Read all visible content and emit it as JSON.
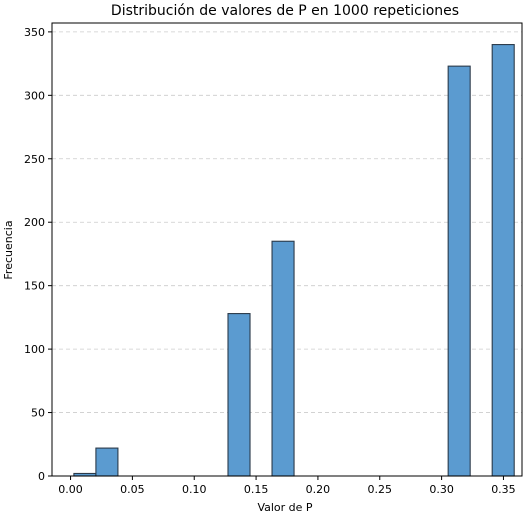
{
  "chart_data": {
    "type": "bar",
    "title": "Distribución de valores de P en 1000 repeticiones",
    "xlabel": "Valor de P",
    "ylabel": "Frecuencia",
    "xlim": [
      -0.015,
      0.365
    ],
    "ylim": [
      0,
      357
    ],
    "xticks": [
      0.0,
      0.05,
      0.1,
      0.15,
      0.2,
      0.25,
      0.3,
      0.35
    ],
    "xtick_labels": [
      "0.00",
      "0.05",
      "0.10",
      "0.15",
      "0.20",
      "0.25",
      "0.30",
      "0.35"
    ],
    "yticks": [
      0,
      50,
      100,
      150,
      200,
      250,
      300,
      350
    ],
    "ytick_labels": [
      "0",
      "50",
      "100",
      "150",
      "200",
      "250",
      "300",
      "350"
    ],
    "bins": [
      {
        "x0": 0.0027,
        "x1": 0.0205,
        "count": 2
      },
      {
        "x0": 0.0205,
        "x1": 0.0383,
        "count": 22
      },
      {
        "x0": 0.1273,
        "x1": 0.1451,
        "count": 128
      },
      {
        "x0": 0.1629,
        "x1": 0.1807,
        "count": 185
      },
      {
        "x0": 0.3053,
        "x1": 0.3231,
        "count": 323
      },
      {
        "x0": 0.3409,
        "x1": 0.3587,
        "count": 340
      }
    ],
    "grid": {
      "y": true,
      "x": false,
      "style": "dashed"
    },
    "bar_color": "#5b9bd0",
    "edge_color": "#2b3a4a"
  }
}
